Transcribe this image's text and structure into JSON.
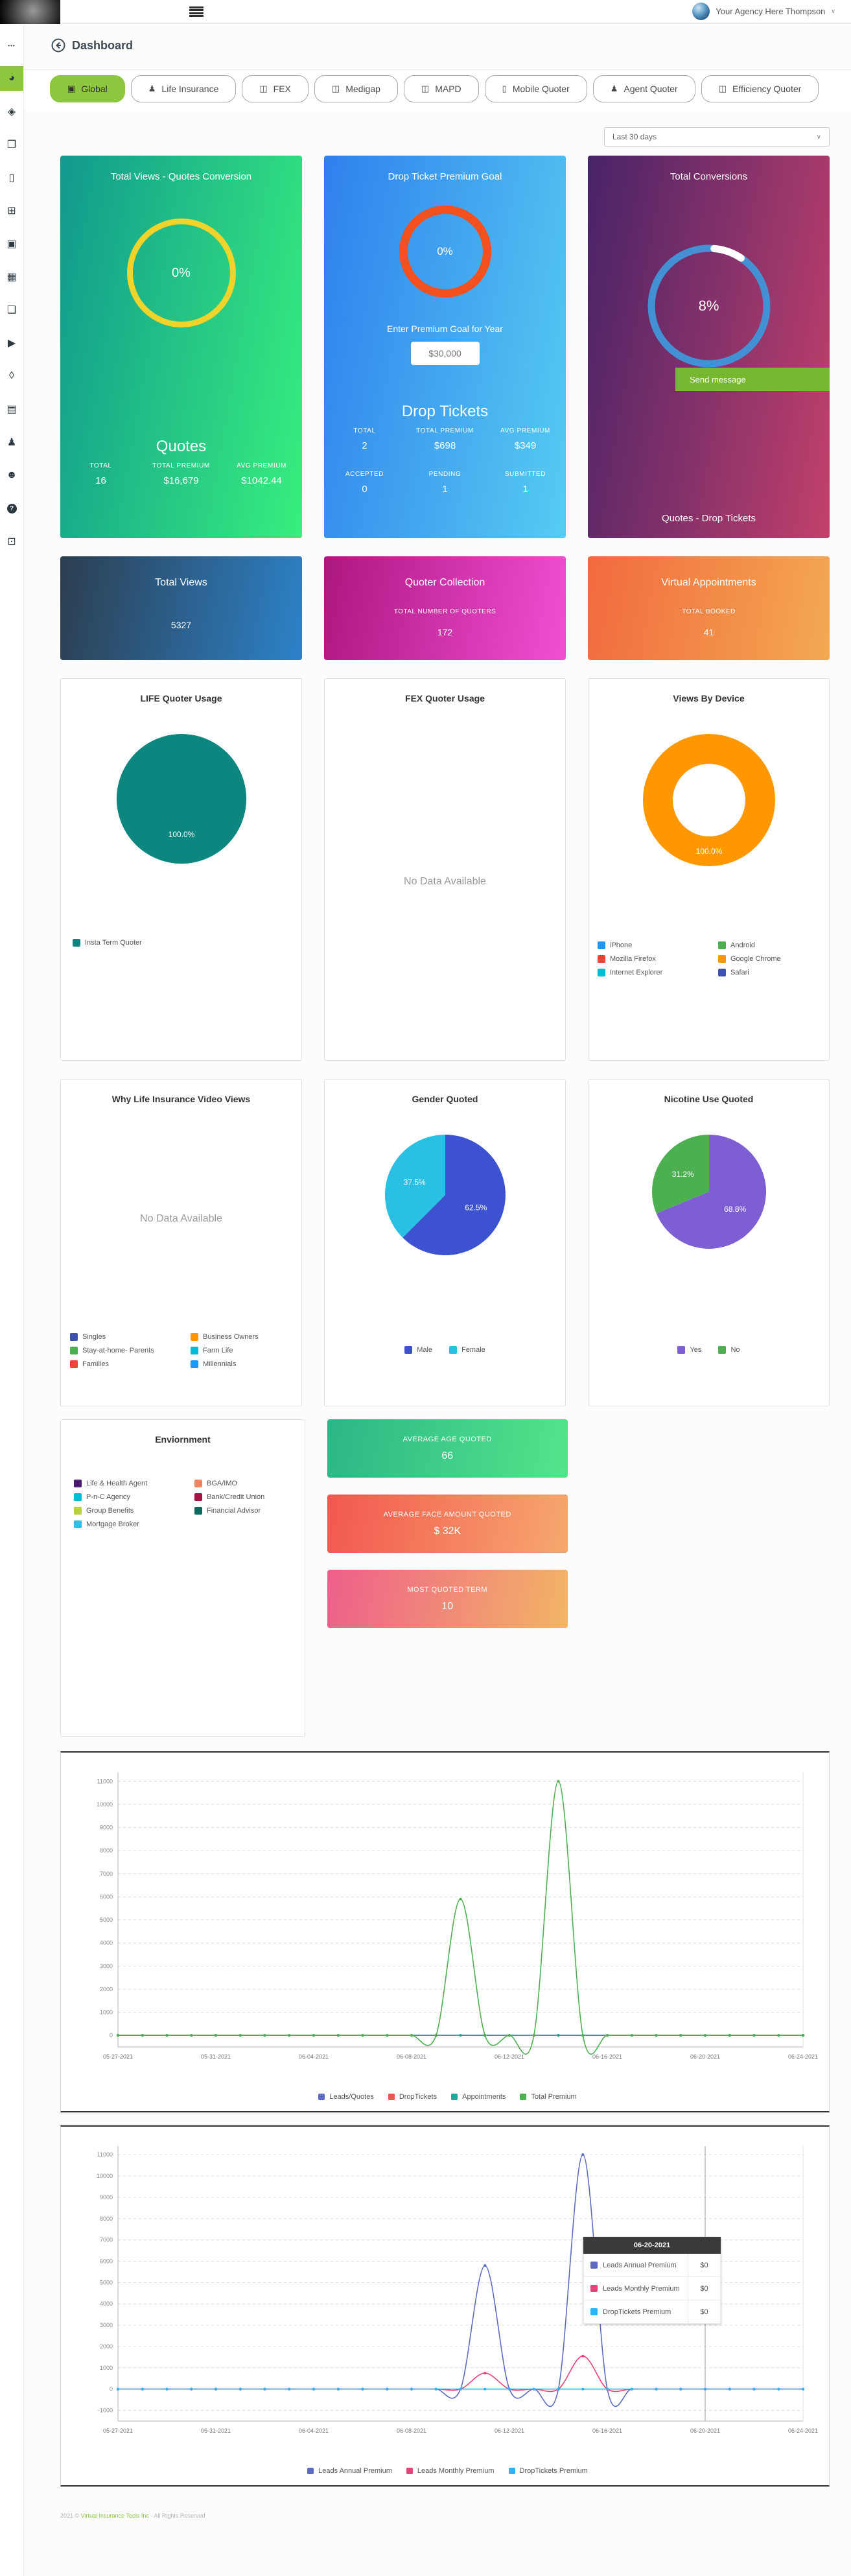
{
  "topbar": {
    "user_name": "Your Agency Here Thompson"
  },
  "page": {
    "title": "Dashboard"
  },
  "sidebar": {
    "items": [
      {
        "icon": "ellipsis",
        "name": "menu-more"
      },
      {
        "icon": "pie-chart",
        "name": "dashboard",
        "active": true
      },
      {
        "icon": "layers",
        "name": "layers"
      },
      {
        "icon": "pages",
        "name": "pages"
      },
      {
        "icon": "phone",
        "name": "mobile"
      },
      {
        "icon": "grid",
        "name": "apps"
      },
      {
        "icon": "image",
        "name": "media"
      },
      {
        "icon": "table",
        "name": "tables"
      },
      {
        "icon": "gallery",
        "name": "gallery"
      },
      {
        "icon": "video",
        "name": "videos"
      },
      {
        "icon": "ticket",
        "name": "tickets"
      },
      {
        "icon": "calendar",
        "name": "calendar"
      },
      {
        "icon": "agent",
        "name": "agents"
      },
      {
        "icon": "user",
        "name": "users"
      },
      {
        "icon": "help",
        "name": "help"
      },
      {
        "icon": "list",
        "name": "reports"
      }
    ]
  },
  "tabs": [
    {
      "label": "Global",
      "icon": "image",
      "active": true
    },
    {
      "label": "Life Insurance",
      "icon": "person",
      "active": false
    },
    {
      "label": "FEX",
      "icon": "book",
      "active": false
    },
    {
      "label": "Medigap",
      "icon": "book",
      "active": false
    },
    {
      "label": "MAPD",
      "icon": "book",
      "active": false
    },
    {
      "label": "Mobile Quoter",
      "icon": "phone",
      "active": false
    },
    {
      "label": "Agent Quoter",
      "icon": "agent",
      "active": false
    },
    {
      "label": "Efficiency Quoter",
      "icon": "book",
      "active": false
    }
  ],
  "filter": {
    "range_label": "Last 30 days"
  },
  "cards": {
    "quotes_conversion": {
      "title": "Total Views - Quotes Conversion",
      "ring_pct": "0%",
      "ring_color": "#f2d32a",
      "section_title": "Quotes",
      "stats": [
        {
          "label": "TOTAL",
          "value": "16"
        },
        {
          "label": "TOTAL PREMIUM",
          "value": "$16,679"
        },
        {
          "label": "AVG PREMIUM",
          "value": "$1042.44"
        }
      ]
    },
    "drop_ticket_goal": {
      "title": "Drop Ticket Premium Goal",
      "ring_pct": "0%",
      "ring_color": "#f4511e",
      "goal_label": "Enter Premium Goal for Year",
      "goal_value": "$30,000",
      "section_title": "Drop Tickets",
      "stats": [
        {
          "label": "TOTAL",
          "value": "2"
        },
        {
          "label": "TOTAL PREMIUM",
          "value": "$698"
        },
        {
          "label": "AVG PREMIUM",
          "value": "$349"
        }
      ],
      "status": [
        {
          "label": "ACCEPTED",
          "value": "0"
        },
        {
          "label": "PENDING",
          "value": "1"
        },
        {
          "label": "SUBMITTED",
          "value": "1"
        }
      ]
    },
    "total_conversions": {
      "title": "Total Conversions",
      "ring_pct": "8%",
      "ring_color": "#4390d4",
      "button_label": "Send message",
      "button_color": "#76b82f",
      "footer_label": "Quotes - Drop Tickets"
    }
  },
  "kpis": [
    {
      "title": "Total Views",
      "label": "",
      "value": "5327",
      "gradient": "navy"
    },
    {
      "title": "Quoter Collection",
      "label": "TOTAL NUMBER OF QUOTERS",
      "value": "172",
      "gradient": "magenta"
    },
    {
      "title": "Virtual Appointments",
      "label": "TOTAL BOOKED",
      "value": "41",
      "gradient": "orange"
    }
  ],
  "stat_tiles": [
    {
      "label": "AVERAGE AGE QUOTED",
      "value": "66",
      "gradient": "green"
    },
    {
      "label": "AVERAGE FACE AMOUNT QUOTED",
      "value": "$ 32K",
      "gradient": "red"
    },
    {
      "label": "MOST QUOTED TERM",
      "value": "10",
      "gradient": "pink"
    }
  ],
  "chart_data": [
    {
      "id": "life_quoter_usage",
      "type": "pie",
      "title": "LIFE Quoter Usage",
      "r": 100,
      "slices": [
        {
          "label": "Insta Term Quoter",
          "value": 100,
          "color": "#0b8780",
          "pct_label": "100.0%"
        }
      ],
      "legend": "single"
    },
    {
      "id": "fex_quoter_usage",
      "type": "pie",
      "title": "FEX Quoter Usage",
      "no_data": true,
      "no_data_label": "No Data Available",
      "slices": [],
      "legend": "none"
    },
    {
      "id": "views_by_device",
      "type": "donut",
      "title": "Views By Device",
      "r": 102,
      "inner": 56,
      "slices": [
        {
          "label": "iPhone",
          "value": 0,
          "color": "#2196f3"
        },
        {
          "label": "Android",
          "value": 0,
          "color": "#4caf50"
        },
        {
          "label": "Mozilla Firefox",
          "value": 0,
          "color": "#f44336"
        },
        {
          "label": "Google Chrome",
          "value": 100,
          "color": "#ff9800",
          "pct_label": "100.0%"
        },
        {
          "label": "Internet Explorer",
          "value": 0,
          "color": "#00bcd4"
        },
        {
          "label": "Safari",
          "value": 0,
          "color": "#3f51b5"
        }
      ],
      "legend": "cols2"
    },
    {
      "id": "video_views",
      "type": "pie",
      "title": "Why Life Insurance Video Views",
      "no_data": true,
      "no_data_label": "No Data Available",
      "slices": [
        {
          "label": "Singles",
          "value": 0,
          "color": "#3f51b5"
        },
        {
          "label": "Business Owners",
          "value": 0,
          "color": "#ff9800"
        },
        {
          "label": "Stay-at-home- Parents",
          "value": 0,
          "color": "#4caf50"
        },
        {
          "label": "Farm Life",
          "value": 0,
          "color": "#00bcd4"
        },
        {
          "label": "Families",
          "value": 0,
          "color": "#f44336"
        },
        {
          "label": "Millennials",
          "value": 0,
          "color": "#2196f3"
        }
      ],
      "legend": "cols2"
    },
    {
      "id": "gender_quoted",
      "type": "pie",
      "title": "Gender Quoted",
      "r": 93,
      "slices": [
        {
          "label": "Male",
          "value": 62.5,
          "color": "#3d52d0",
          "pct_label": "62.5%"
        },
        {
          "label": "Female",
          "value": 37.5,
          "color": "#2ac0e4",
          "pct_label": "37.5%"
        }
      ],
      "legend": "row"
    },
    {
      "id": "nicotine_quoted",
      "type": "pie",
      "title": "Nicotine Use Quoted",
      "r": 88,
      "slices": [
        {
          "label": "Yes",
          "value": 68.8,
          "color": "#7e5fd3",
          "pct_label": "68.8%"
        },
        {
          "label": "No",
          "value": 31.2,
          "color": "#4caf50",
          "pct_label": "31.2%"
        }
      ],
      "legend": "row"
    },
    {
      "id": "enviornment",
      "type": "pie",
      "title": "Enviornment",
      "no_data": true,
      "no_data_label": "",
      "slices": [
        {
          "label": "Life & Health Agent",
          "value": 0,
          "color": "#4a1a70"
        },
        {
          "label": "BGA/IMO",
          "value": 0,
          "color": "#f4845f"
        },
        {
          "label": "P-n-C Agency",
          "value": 0,
          "color": "#00bcd4"
        },
        {
          "label": "Bank/Credit Union",
          "value": 0,
          "color": "#a61344"
        },
        {
          "label": "Group Benefits",
          "value": 0,
          "color": "#b5d334"
        },
        {
          "label": "Financial Advisor",
          "value": 0,
          "color": "#0b6b60"
        },
        {
          "label": "Mortgage Broker",
          "value": 0,
          "color": "#29c5e6"
        }
      ],
      "legend": "cols2",
      "legend_position": "top"
    },
    {
      "id": "activity_timeline",
      "type": "line",
      "x": [
        "05-27-2021",
        "05-28-2021",
        "05-29-2021",
        "05-30-2021",
        "05-31-2021",
        "06-01-2021",
        "06-02-2021",
        "06-03-2021",
        "06-04-2021",
        "06-05-2021",
        "06-06-2021",
        "06-07-2021",
        "06-08-2021",
        "06-09-2021",
        "06-10-2021",
        "06-11-2021",
        "06-12-2021",
        "06-13-2021",
        "06-14-2021",
        "06-15-2021",
        "06-16-2021",
        "06-17-2021",
        "06-18-2021",
        "06-19-2021",
        "06-20-2021",
        "06-21-2021",
        "06-22-2021",
        "06-23-2021",
        "06-24-2021"
      ],
      "x_tick_idx": [
        0,
        4,
        8,
        12,
        16,
        20,
        24,
        28
      ],
      "yticks": [
        0,
        1000,
        2000,
        3000,
        4000,
        5000,
        6000,
        7000,
        8000,
        9000,
        10000,
        11000
      ],
      "ylim": [
        -500,
        11400
      ],
      "series": [
        {
          "name": "Leads/Quotes",
          "color": "#5c6bc0",
          "values": [
            2,
            1,
            1,
            0,
            1,
            2,
            1,
            1,
            0,
            1,
            2,
            1,
            3,
            2,
            4,
            3,
            1,
            2,
            5,
            3,
            1,
            2,
            1,
            1,
            0,
            1,
            1,
            0,
            1
          ]
        },
        {
          "name": "DropTickets",
          "color": "#ef5350",
          "values": [
            0,
            0,
            0,
            0,
            0,
            0,
            0,
            0,
            0,
            0,
            0,
            0,
            0,
            0,
            0,
            1,
            0,
            0,
            0,
            1,
            0,
            0,
            0,
            0,
            0,
            0,
            0,
            0,
            0
          ]
        },
        {
          "name": "Appointments",
          "color": "#26a69a",
          "values": [
            0,
            0,
            0,
            0,
            0,
            0,
            0,
            0,
            1,
            0,
            0,
            0,
            0,
            0,
            1,
            0,
            0,
            0,
            0,
            0,
            0,
            0,
            0,
            0,
            0,
            0,
            0,
            0,
            0
          ]
        },
        {
          "name": "Total Premium",
          "color": "#4caf50",
          "values": [
            0,
            0,
            0,
            0,
            0,
            0,
            0,
            0,
            0,
            0,
            0,
            0,
            0,
            0,
            5900,
            0,
            0,
            0,
            11000,
            0,
            0,
            0,
            0,
            0,
            0,
            0,
            0,
            0,
            0
          ]
        }
      ]
    },
    {
      "id": "premium_breakdown",
      "type": "line",
      "x": [
        "05-27-2021",
        "05-28-2021",
        "05-29-2021",
        "05-30-2021",
        "05-31-2021",
        "06-01-2021",
        "06-02-2021",
        "06-03-2021",
        "06-04-2021",
        "06-05-2021",
        "06-06-2021",
        "06-07-2021",
        "06-08-2021",
        "06-09-2021",
        "06-10-2021",
        "06-11-2021",
        "06-12-2021",
        "06-13-2021",
        "06-14-2021",
        "06-15-2021",
        "06-16-2021",
        "06-17-2021",
        "06-18-2021",
        "06-19-2021",
        "06-20-2021",
        "06-21-2021",
        "06-22-2021",
        "06-23-2021",
        "06-24-2021"
      ],
      "x_tick_idx": [
        0,
        4,
        8,
        12,
        16,
        20,
        24,
        28
      ],
      "yticks": [
        -1000,
        0,
        1000,
        2000,
        3000,
        4000,
        5000,
        6000,
        7000,
        8000,
        9000,
        10000,
        11000
      ],
      "ylim": [
        -1500,
        11400
      ],
      "series": [
        {
          "name": "Leads Annual Premium",
          "color": "#5c6bc0",
          "values": [
            0,
            0,
            0,
            0,
            0,
            0,
            0,
            0,
            0,
            0,
            0,
            0,
            0,
            0,
            0,
            5800,
            0,
            0,
            0,
            11000,
            0,
            0,
            0,
            0,
            0,
            0,
            0,
            0,
            0
          ]
        },
        {
          "name": "Leads Monthly Premium",
          "color": "#ec407a",
          "values": [
            0,
            0,
            0,
            0,
            0,
            0,
            0,
            0,
            0,
            0,
            0,
            0,
            0,
            0,
            0,
            750,
            0,
            0,
            0,
            1550,
            0,
            0,
            0,
            0,
            0,
            0,
            0,
            0,
            0
          ]
        },
        {
          "name": "DropTickets Premium",
          "color": "#29b6f6",
          "values": [
            0,
            0,
            0,
            0,
            0,
            0,
            0,
            0,
            0,
            0,
            0,
            0,
            0,
            0,
            0,
            0,
            0,
            0,
            0,
            0,
            0,
            0,
            0,
            0,
            0,
            0,
            0,
            0,
            0
          ]
        }
      ],
      "vline_date": "06-20-2021",
      "tooltip": {
        "date": "06-20-2021",
        "rows": [
          {
            "label": "Leads Annual Premium",
            "value": "$0",
            "color": "#5c6bc0"
          },
          {
            "label": "Leads Monthly Premium",
            "value": "$0",
            "color": "#ec407a"
          },
          {
            "label": "DropTickets Premium",
            "value": "$0",
            "color": "#29b6f6"
          }
        ]
      }
    }
  ],
  "footer": {
    "prefix": "2021 ©",
    "company": "Virtual Insurance Tools Inc",
    "suffix": "- All Rights Reserved"
  }
}
